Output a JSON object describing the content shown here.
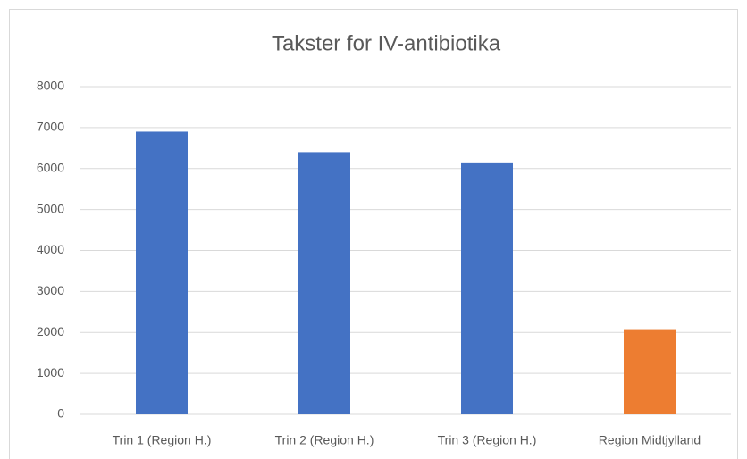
{
  "chart_data": {
    "type": "bar",
    "title": "Takster for IV-antibiotika",
    "categories": [
      "Trin 1 (Region H.)",
      "Trin 2 (Region H.)",
      "Trin 3 (Region H.)",
      "Region Midtjylland"
    ],
    "values": [
      6900,
      6400,
      6150,
      2080
    ],
    "colors": [
      "#4472c4",
      "#4472c4",
      "#4472c4",
      "#ed7d31"
    ],
    "ylim": [
      0,
      8000
    ],
    "yticks": [
      0,
      1000,
      2000,
      3000,
      4000,
      5000,
      6000,
      7000,
      8000
    ],
    "grid": true
  }
}
